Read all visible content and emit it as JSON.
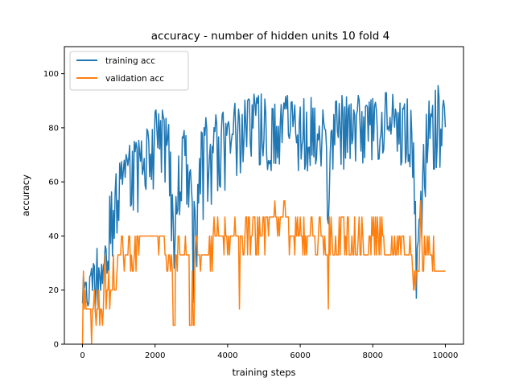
{
  "chart_data": {
    "type": "line",
    "title": "accuracy - number of hidden units 10 fold 4",
    "xlabel": "training steps",
    "ylabel": "accuracy",
    "xlim": [
      -500,
      10500
    ],
    "ylim": [
      0,
      110
    ],
    "xticks": [
      0,
      2000,
      4000,
      6000,
      8000,
      10000
    ],
    "yticks": [
      0,
      20,
      40,
      60,
      80,
      100
    ],
    "grid": false,
    "legend_position": "top-left",
    "series": [
      {
        "name": "training acc",
        "color": "#1f77b4",
        "step": 25,
        "low": [
          [
            0,
            3
          ],
          [
            120,
            3
          ],
          [
            300,
            8
          ],
          [
            450,
            12
          ],
          [
            600,
            20
          ],
          [
            800,
            30
          ],
          [
            950,
            38
          ],
          [
            1100,
            44
          ],
          [
            1300,
            46
          ],
          [
            1500,
            48
          ],
          [
            1700,
            54
          ],
          [
            1900,
            58
          ],
          [
            2050,
            56
          ],
          [
            2200,
            58
          ],
          [
            2350,
            52
          ],
          [
            2450,
            36
          ],
          [
            2550,
            22
          ],
          [
            2650,
            38
          ],
          [
            2750,
            55
          ],
          [
            2850,
            52
          ],
          [
            2950,
            32
          ],
          [
            3050,
            10
          ],
          [
            3100,
            12
          ],
          [
            3200,
            35
          ],
          [
            3400,
            48
          ],
          [
            3600,
            52
          ],
          [
            3800,
            55
          ],
          [
            4000,
            58
          ],
          [
            4200,
            62
          ],
          [
            4400,
            62
          ],
          [
            4600,
            64
          ],
          [
            4800,
            64
          ],
          [
            5000,
            64
          ],
          [
            5200,
            64
          ],
          [
            5400,
            64
          ],
          [
            5600,
            64
          ],
          [
            5800,
            64
          ],
          [
            6000,
            64
          ],
          [
            6200,
            64
          ],
          [
            6400,
            64
          ],
          [
            6600,
            64
          ],
          [
            6700,
            50
          ],
          [
            6780,
            22
          ],
          [
            6850,
            50
          ],
          [
            7000,
            64
          ],
          [
            7200,
            64
          ],
          [
            7400,
            66
          ],
          [
            7600,
            66
          ],
          [
            7800,
            66
          ],
          [
            8000,
            66
          ],
          [
            8200,
            66
          ],
          [
            8400,
            66
          ],
          [
            8600,
            66
          ],
          [
            8800,
            66
          ],
          [
            9000,
            66
          ],
          [
            9100,
            60
          ],
          [
            9150,
            35
          ],
          [
            9220,
            5
          ],
          [
            9300,
            12
          ],
          [
            9400,
            40
          ],
          [
            9500,
            62
          ],
          [
            9600,
            66
          ],
          [
            9700,
            64
          ],
          [
            9800,
            64
          ],
          [
            9900,
            58
          ],
          [
            10000,
            70
          ]
        ],
        "high": [
          [
            0,
            28
          ],
          [
            120,
            28
          ],
          [
            300,
            32
          ],
          [
            450,
            40
          ],
          [
            600,
            48
          ],
          [
            800,
            58
          ],
          [
            950,
            68
          ],
          [
            1100,
            72
          ],
          [
            1300,
            75
          ],
          [
            1500,
            78
          ],
          [
            1700,
            80
          ],
          [
            1900,
            84
          ],
          [
            2050,
            88
          ],
          [
            2200,
            88
          ],
          [
            2350,
            86
          ],
          [
            2450,
            70
          ],
          [
            2550,
            55
          ],
          [
            2650,
            72
          ],
          [
            2750,
            82
          ],
          [
            2850,
            82
          ],
          [
            2950,
            74
          ],
          [
            3050,
            52
          ],
          [
            3100,
            55
          ],
          [
            3200,
            76
          ],
          [
            3400,
            84
          ],
          [
            3600,
            86
          ],
          [
            3800,
            86
          ],
          [
            4000,
            88
          ],
          [
            4200,
            90
          ],
          [
            4400,
            90
          ],
          [
            4600,
            92
          ],
          [
            4800,
            94
          ],
          [
            5000,
            92
          ],
          [
            5200,
            92
          ],
          [
            5400,
            92
          ],
          [
            5600,
            92
          ],
          [
            5800,
            92
          ],
          [
            6000,
            94
          ],
          [
            6200,
            92
          ],
          [
            6400,
            92
          ],
          [
            6600,
            92
          ],
          [
            6700,
            84
          ],
          [
            6780,
            60
          ],
          [
            6850,
            84
          ],
          [
            7000,
            92
          ],
          [
            7200,
            94
          ],
          [
            7400,
            92
          ],
          [
            7600,
            94
          ],
          [
            7800,
            92
          ],
          [
            8000,
            94
          ],
          [
            8200,
            92
          ],
          [
            8400,
            94
          ],
          [
            8600,
            92
          ],
          [
            8800,
            92
          ],
          [
            9000,
            92
          ],
          [
            9100,
            88
          ],
          [
            9150,
            68
          ],
          [
            9220,
            38
          ],
          [
            9300,
            52
          ],
          [
            9400,
            78
          ],
          [
            9500,
            92
          ],
          [
            9600,
            92
          ],
          [
            9700,
            94
          ],
          [
            9800,
            96
          ],
          [
            9900,
            92
          ],
          [
            10000,
            92
          ]
        ]
      },
      {
        "name": "validation acc",
        "color": "#ff7f0e",
        "step": 25,
        "segments": [
          {
            "x0": 0,
            "x1": 300,
            "base": 13,
            "alts": [
              0,
              20,
              27
            ]
          },
          {
            "x0": 300,
            "x1": 600,
            "base": 13,
            "alts": [
              0,
              7,
              20
            ]
          },
          {
            "x0": 600,
            "x1": 950,
            "base": 20,
            "alts": [
              27,
              33,
              13
            ]
          },
          {
            "x0": 950,
            "x1": 1500,
            "base": 33,
            "alts": [
              40,
              27
            ]
          },
          {
            "x0": 1500,
            "x1": 2300,
            "base": 40,
            "alts": [
              33,
              40
            ]
          },
          {
            "x0": 2300,
            "x1": 2500,
            "base": 33,
            "alts": [
              40,
              27
            ]
          },
          {
            "x0": 2500,
            "x1": 2560,
            "base": 7,
            "alts": [
              20
            ]
          },
          {
            "x0": 2560,
            "x1": 2950,
            "base": 33,
            "alts": [
              27,
              40
            ]
          },
          {
            "x0": 2950,
            "x1": 3100,
            "base": 7,
            "alts": [
              27,
              33
            ]
          },
          {
            "x0": 3100,
            "x1": 3500,
            "base": 33,
            "alts": [
              27,
              40
            ]
          },
          {
            "x0": 3500,
            "x1": 4200,
            "base": 40,
            "alts": [
              33,
              47,
              27
            ]
          },
          {
            "x0": 4200,
            "x1": 4500,
            "base": 40,
            "alts": [
              33,
              47,
              13
            ]
          },
          {
            "x0": 4500,
            "x1": 5100,
            "base": 47,
            "alts": [
              40,
              33
            ]
          },
          {
            "x0": 5100,
            "x1": 5700,
            "base": 47,
            "alts": [
              53,
              40
            ]
          },
          {
            "x0": 5700,
            "x1": 6700,
            "base": 40,
            "alts": [
              33,
              47
            ]
          },
          {
            "x0": 6700,
            "x1": 6800,
            "base": 33,
            "alts": [
              13,
              40
            ]
          },
          {
            "x0": 6800,
            "x1": 7300,
            "base": 33,
            "alts": [
              40,
              47
            ]
          },
          {
            "x0": 7300,
            "x1": 8600,
            "base": 33,
            "alts": [
              40,
              47
            ]
          },
          {
            "x0": 8600,
            "x1": 9100,
            "base": 33,
            "alts": [
              40
            ]
          },
          {
            "x0": 9100,
            "x1": 9300,
            "base": 27,
            "alts": [
              13,
              53,
              40,
              20
            ]
          },
          {
            "x0": 9300,
            "x1": 9500,
            "base": 40,
            "alts": [
              53,
              27,
              33
            ]
          },
          {
            "x0": 9500,
            "x1": 9700,
            "base": 33,
            "alts": [
              27,
              40
            ]
          },
          {
            "x0": 9700,
            "x1": 10000,
            "base": 27,
            "alts": [
              27
            ]
          }
        ]
      }
    ]
  }
}
